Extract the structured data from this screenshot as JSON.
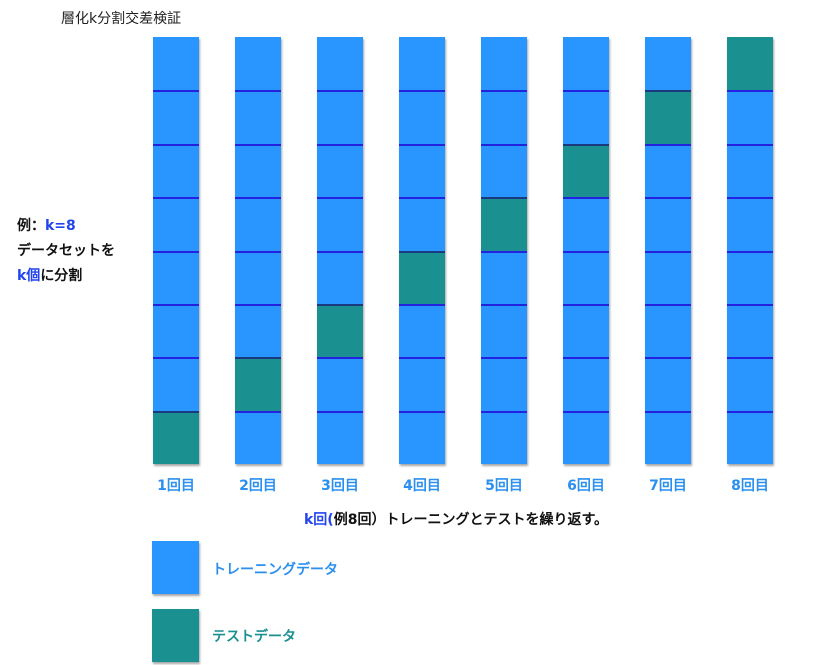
{
  "title": "層化k分割交差検証",
  "side_note": {
    "prefix": "例：",
    "k_value": "k=8",
    "line2": "データセットを",
    "k_count": "k個",
    "line3_suffix": "に分割"
  },
  "k": 8,
  "folds": [
    {
      "label": "1回目",
      "test_segment_from_top": 8
    },
    {
      "label": "2回目",
      "test_segment_from_top": 7
    },
    {
      "label": "3回目",
      "test_segment_from_top": 6
    },
    {
      "label": "4回目",
      "test_segment_from_top": 5
    },
    {
      "label": "5回目",
      "test_segment_from_top": 4
    },
    {
      "label": "6回目",
      "test_segment_from_top": 3
    },
    {
      "label": "7回目",
      "test_segment_from_top": 2
    },
    {
      "label": "8回目",
      "test_segment_from_top": 1
    }
  ],
  "caption": {
    "k_part": "k回(",
    "rest": "例8回）トレーニングとテストを繰り返す。"
  },
  "legend": {
    "training": "トレーニングデータ",
    "test": "テストデータ"
  },
  "colors": {
    "training": "#2996ff",
    "test": "#1a9090",
    "divider": "#2222e0",
    "label_blue": "#2a8fef",
    "k_blue": "#2244ee"
  }
}
